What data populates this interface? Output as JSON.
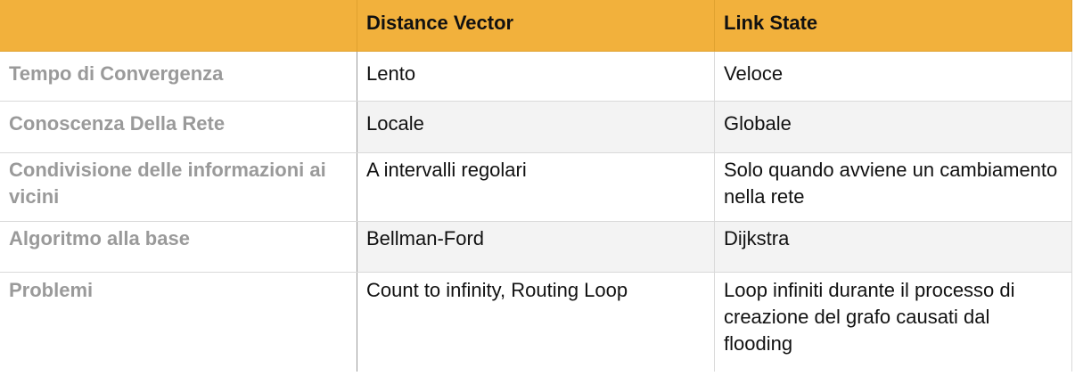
{
  "table": {
    "header": [
      "",
      "Distance Vector",
      "Link State"
    ],
    "rows": [
      [
        "Tempo di Convergenza",
        "Lento",
        "Veloce"
      ],
      [
        "Conoscenza Della Rete",
        "Locale",
        "Globale"
      ],
      [
        "Condivisione delle informazioni ai vicini",
        "A intervalli regolari",
        "Solo quando avviene un cambiamento nella rete"
      ],
      [
        "Algoritmo alla base",
        "Bellman-Ford",
        "Dijkstra"
      ],
      [
        "Problemi",
        "Count to infinity, Routing Loop",
        "Loop infiniti durante il processo di creazione del grafo causati dal flooding"
      ]
    ]
  },
  "colors": {
    "header_bg": "#f2b13c",
    "row_label": "#9a9a9a",
    "alt_row_bg": "#f3f3f3"
  }
}
